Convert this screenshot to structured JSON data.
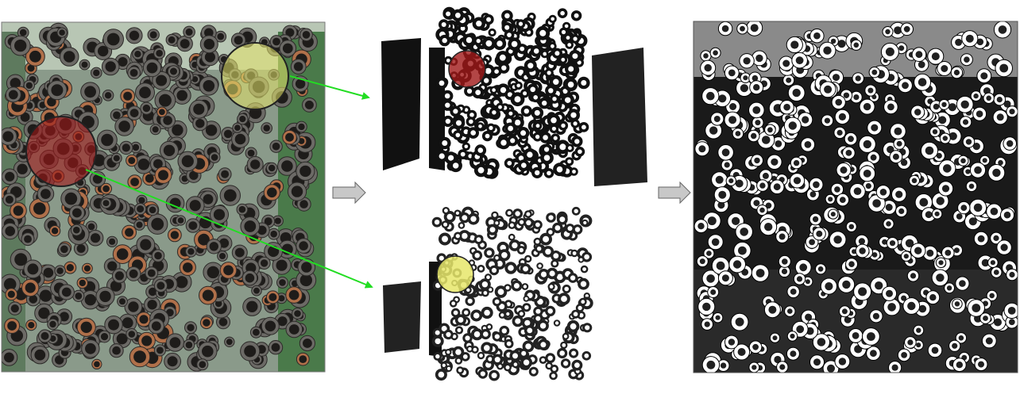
{
  "panels": [
    {
      "role": "source-photo",
      "icon": "pipe-bundle-photo"
    },
    {
      "role": "binarized-top",
      "icon": "binarized-pipe-image"
    },
    {
      "role": "binarized-bottom",
      "icon": "binarized-pipe-image"
    },
    {
      "role": "detection-result",
      "icon": "detected-pipe-ends"
    }
  ],
  "highlights": [
    {
      "role": "large-pipe-region",
      "color": "#a01818"
    },
    {
      "role": "small-pipe-region",
      "color": "#e6e66a"
    }
  ],
  "connector_color": "#22dd22",
  "flow_arrow_color": "#c8c8c8"
}
